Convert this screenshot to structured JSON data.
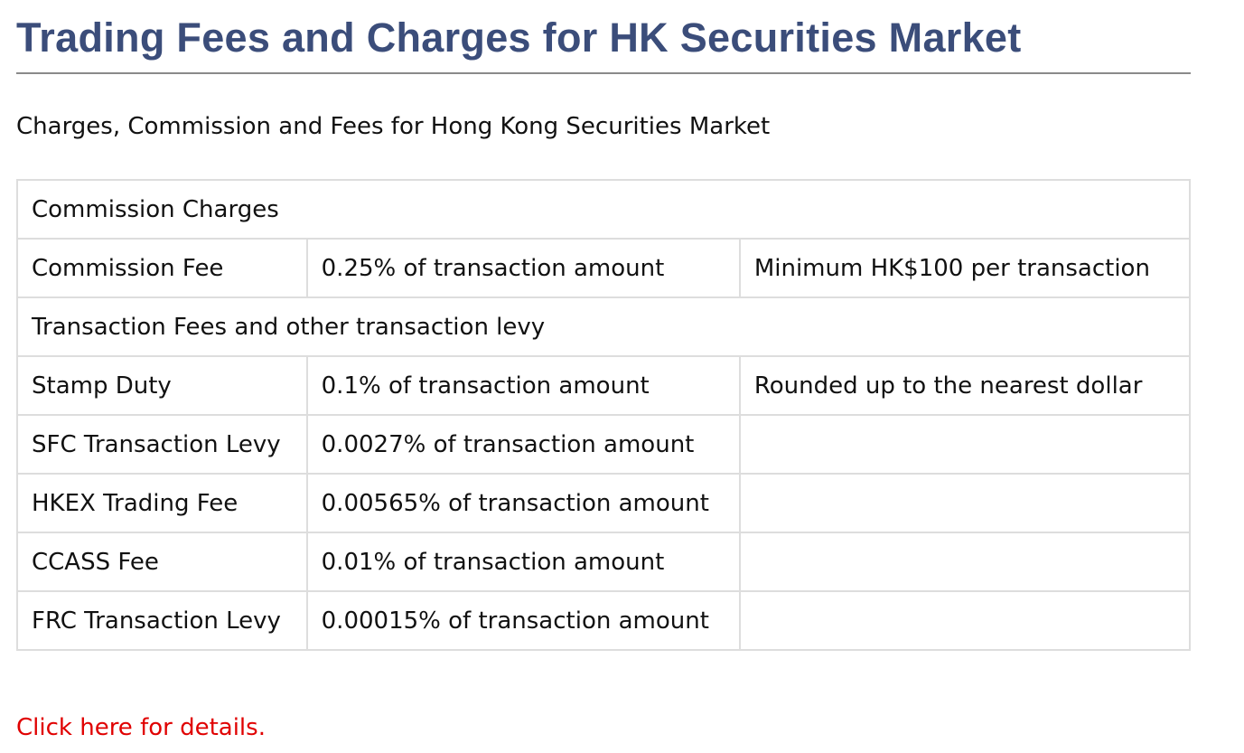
{
  "header": {
    "title": "Trading Fees and Charges for HK Securities Market"
  },
  "subtitle": "Charges, Commission and Fees for Hong Kong Securities Market",
  "table": {
    "rows": [
      [
        "Commission Charges"
      ],
      [
        "Commission Fee",
        "0.25% of transaction amount",
        "Minimum HK$100 per transaction"
      ],
      [
        "Transaction Fees and other transaction levy"
      ],
      [
        "Stamp Duty",
        "0.1% of transaction amount",
        "Rounded up to the nearest dollar"
      ],
      [
        "SFC Transaction Levy",
        "0.0027% of transaction amount"
      ],
      [
        "HKEX Trading Fee",
        "0.00565% of transaction amount"
      ],
      [
        "CCASS Fee",
        "0.01% of transaction amount"
      ],
      [
        "FRC Transaction Levy",
        "0.00015% of transaction amount"
      ]
    ]
  },
  "link": "Click here for details."
}
